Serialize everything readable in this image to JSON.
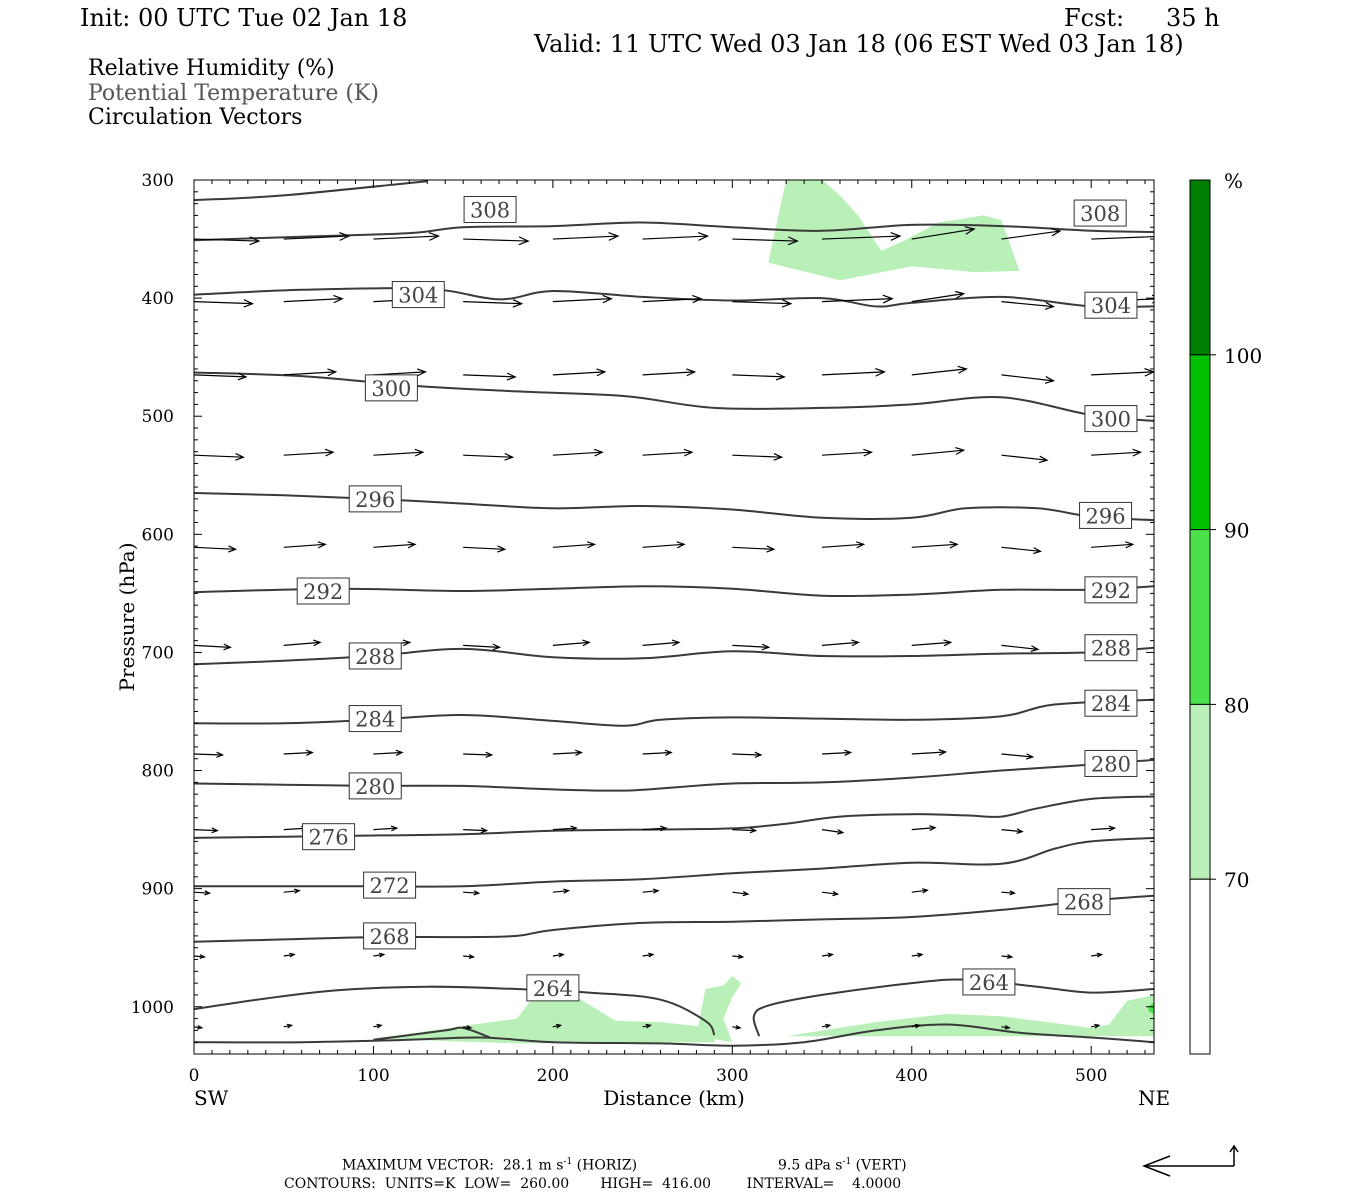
{
  "header": {
    "init": "Init: 00 UTC Tue 02 Jan 18",
    "fcst_label": "Fcst:",
    "fcst_value": "35 h",
    "valid": "Valid: 11 UTC Wed 03 Jan 18 (06 EST Wed 03 Jan 18)"
  },
  "fields": {
    "rh": "Relative Humidity (%)",
    "theta": "Potential Temperature (K)",
    "vectors": "Circulation Vectors"
  },
  "footer": {
    "max_vector": "MAXIMUM VECTOR:  28.1 m s",
    "max_vector_exp": "-1",
    "horiz": " (HORIZ)",
    "vert_val": "9.5 dPa s",
    "vert_exp": "-1",
    "vert": " (VERT)",
    "contours": "CONTOURS:  UNITS=K  LOW=  260.00       HIGH=  416.00        INTERVAL=    4.0000"
  },
  "colors": {
    "contour": "#3a3a3a",
    "rh70": "#b8f0b8",
    "rh80": "#4be14b",
    "rh90": "#00c000",
    "rh100": "#008000"
  },
  "chart_data": {
    "type": "cross-section",
    "xlabel": "Distance (km)",
    "ylabel": "Pressure (hPa)",
    "xlim": [
      0,
      535
    ],
    "ylim": [
      1040,
      300
    ],
    "x_ticks": [
      "0",
      "100",
      "200",
      "300",
      "400",
      "500"
    ],
    "x_tick_values": [
      0,
      100,
      200,
      300,
      400,
      500
    ],
    "y_ticks": [
      "300",
      "400",
      "500",
      "600",
      "700",
      "800",
      "900",
      "1000"
    ],
    "y_tick_values": [
      300,
      400,
      500,
      600,
      700,
      800,
      900,
      1000
    ],
    "left_end": "SW",
    "right_end": "NE",
    "colorbar": {
      "unit": "%",
      "levels": [
        "70",
        "80",
        "90",
        "100"
      ],
      "level_values": [
        70,
        80,
        90,
        100
      ],
      "colors": [
        "#ffffff",
        "#b8f0b8",
        "#4be14b",
        "#00c000",
        "#008000"
      ]
    },
    "isentropes": [
      {
        "theta": 308,
        "labels": [
          "308",
          "308"
        ],
        "points": [
          [
            0,
            317
          ],
          [
            50,
            313
          ],
          [
            130,
            301
          ]
        ]
      },
      {
        "theta": 308,
        "labels": [],
        "points": [
          [
            0,
            351
          ],
          [
            60,
            348
          ],
          [
            120,
            345
          ],
          [
            150,
            340
          ],
          [
            200,
            339
          ],
          [
            250,
            336
          ],
          [
            300,
            340
          ],
          [
            350,
            343
          ],
          [
            400,
            338
          ],
          [
            450,
            339
          ],
          [
            500,
            343
          ],
          [
            535,
            344
          ]
        ]
      },
      {
        "theta": 304,
        "labels": [
          "304",
          "304"
        ],
        "points": [
          [
            0,
            397
          ],
          [
            60,
            393
          ],
          [
            130,
            392
          ],
          [
            170,
            401
          ],
          [
            200,
            394
          ],
          [
            250,
            399
          ],
          [
            300,
            402
          ],
          [
            350,
            400
          ],
          [
            380,
            407
          ],
          [
            400,
            404
          ],
          [
            450,
            399
          ],
          [
            500,
            407
          ],
          [
            535,
            407
          ]
        ]
      },
      {
        "theta": 300,
        "labels": [
          "300",
          "300"
        ],
        "points": [
          [
            0,
            463
          ],
          [
            60,
            466
          ],
          [
            120,
            474
          ],
          [
            180,
            479
          ],
          [
            240,
            483
          ],
          [
            290,
            493
          ],
          [
            350,
            493
          ],
          [
            400,
            490
          ],
          [
            450,
            484
          ],
          [
            500,
            499
          ],
          [
            535,
            504
          ]
        ]
      },
      {
        "theta": 296,
        "labels": [
          "296",
          "296"
        ],
        "points": [
          [
            0,
            565
          ],
          [
            50,
            567
          ],
          [
            100,
            570
          ],
          [
            150,
            574
          ],
          [
            200,
            578
          ],
          [
            250,
            576
          ],
          [
            300,
            579
          ],
          [
            350,
            586
          ],
          [
            400,
            586
          ],
          [
            430,
            578
          ],
          [
            470,
            578
          ],
          [
            500,
            585
          ],
          [
            535,
            588
          ]
        ]
      },
      {
        "theta": 292,
        "labels": [
          "292",
          "292"
        ],
        "points": [
          [
            0,
            649
          ],
          [
            80,
            646
          ],
          [
            150,
            648
          ],
          [
            200,
            646
          ],
          [
            250,
            644
          ],
          [
            300,
            646
          ],
          [
            350,
            652
          ],
          [
            400,
            651
          ],
          [
            450,
            647
          ],
          [
            500,
            647
          ],
          [
            535,
            644
          ]
        ]
      },
      {
        "theta": 288,
        "labels": [
          "288",
          "288"
        ],
        "points": [
          [
            0,
            710
          ],
          [
            50,
            707
          ],
          [
            100,
            703
          ],
          [
            150,
            697
          ],
          [
            200,
            704
          ],
          [
            250,
            705
          ],
          [
            300,
            699
          ],
          [
            350,
            703
          ],
          [
            400,
            703
          ],
          [
            450,
            701
          ],
          [
            500,
            700
          ],
          [
            535,
            696
          ]
        ]
      },
      {
        "theta": 284,
        "labels": [
          "284",
          "284"
        ],
        "points": [
          [
            0,
            760
          ],
          [
            50,
            760
          ],
          [
            100,
            757
          ],
          [
            150,
            753
          ],
          [
            200,
            758
          ],
          [
            240,
            762
          ],
          [
            260,
            757
          ],
          [
            300,
            755
          ],
          [
            350,
            756
          ],
          [
            400,
            757
          ],
          [
            450,
            754
          ],
          [
            480,
            744
          ],
          [
            535,
            740
          ]
        ]
      },
      {
        "theta": 280,
        "labels": [
          "280",
          "280"
        ],
        "points": [
          [
            0,
            811
          ],
          [
            50,
            812
          ],
          [
            100,
            813
          ],
          [
            150,
            813
          ],
          [
            200,
            816
          ],
          [
            240,
            817
          ],
          [
            270,
            814
          ],
          [
            300,
            811
          ],
          [
            350,
            810
          ],
          [
            400,
            806
          ],
          [
            450,
            800
          ],
          [
            500,
            795
          ],
          [
            535,
            791
          ]
        ]
      },
      {
        "theta": 276,
        "labels": [
          "276"
        ],
        "points": [
          [
            0,
            857
          ],
          [
            50,
            856
          ],
          [
            100,
            855
          ],
          [
            150,
            854
          ],
          [
            200,
            851
          ],
          [
            250,
            850
          ],
          [
            300,
            849
          ],
          [
            330,
            845
          ],
          [
            360,
            839
          ],
          [
            400,
            837
          ],
          [
            430,
            838
          ],
          [
            450,
            839
          ],
          [
            470,
            832
          ],
          [
            500,
            824
          ],
          [
            535,
            822
          ]
        ]
      },
      {
        "theta": 272,
        "labels": [
          "272"
        ],
        "points": [
          [
            0,
            898
          ],
          [
            50,
            898
          ],
          [
            100,
            898
          ],
          [
            150,
            898
          ],
          [
            200,
            894
          ],
          [
            250,
            892
          ],
          [
            300,
            887
          ],
          [
            350,
            883
          ],
          [
            400,
            878
          ],
          [
            450,
            879
          ],
          [
            480,
            866
          ],
          [
            500,
            860
          ],
          [
            535,
            857
          ]
        ]
      },
      {
        "theta": 268,
        "labels": [
          "268",
          "268"
        ],
        "points": [
          [
            0,
            945
          ],
          [
            50,
            943
          ],
          [
            100,
            941
          ],
          [
            150,
            941
          ],
          [
            180,
            940
          ],
          [
            200,
            935
          ],
          [
            250,
            929
          ],
          [
            300,
            928
          ],
          [
            350,
            926
          ],
          [
            400,
            924
          ],
          [
            450,
            918
          ],
          [
            500,
            910
          ],
          [
            535,
            906
          ]
        ]
      },
      {
        "theta": 264,
        "labels": [
          "264",
          "264"
        ],
        "points": [
          [
            0,
            1002
          ],
          [
            40,
            993
          ],
          [
            80,
            986
          ],
          [
            130,
            983
          ],
          [
            180,
            985
          ],
          [
            220,
            988
          ],
          [
            260,
            994
          ],
          [
            285,
            1012
          ],
          [
            290,
            1024
          ]
        ]
      },
      {
        "theta": 264,
        "labels": [],
        "points": [
          [
            315,
            1025
          ],
          [
            312,
            1008
          ],
          [
            320,
            999
          ],
          [
            350,
            990
          ],
          [
            400,
            980
          ],
          [
            430,
            977
          ],
          [
            470,
            983
          ],
          [
            500,
            988
          ],
          [
            535,
            985
          ]
        ]
      },
      {
        "theta": 260,
        "labels": [],
        "points": [
          [
            0,
            1030
          ],
          [
            60,
            1030
          ],
          [
            120,
            1028
          ],
          [
            160,
            1026
          ],
          [
            200,
            1030
          ],
          [
            260,
            1031
          ],
          [
            300,
            1033
          ],
          [
            340,
            1030
          ],
          [
            380,
            1020
          ],
          [
            420,
            1015
          ],
          [
            460,
            1022
          ],
          [
            500,
            1026
          ],
          [
            535,
            1030
          ]
        ]
      },
      {
        "theta": 260,
        "labels": [],
        "points": [
          [
            100,
            1028
          ],
          [
            140,
            1020
          ],
          [
            150,
            1018
          ],
          [
            165,
            1026
          ]
        ]
      }
    ],
    "rh_regions": [
      {
        "level": 70,
        "points": [
          [
            330,
            300
          ],
          [
            350,
            300
          ],
          [
            360,
            313
          ],
          [
            370,
            330
          ],
          [
            383,
            360
          ],
          [
            395,
            352
          ],
          [
            415,
            336
          ],
          [
            440,
            330
          ],
          [
            450,
            334
          ],
          [
            460,
            377
          ],
          [
            435,
            378
          ],
          [
            400,
            373
          ],
          [
            360,
            385
          ],
          [
            320,
            370
          ]
        ]
      },
      {
        "level": 70,
        "points": [
          [
            100,
            1027
          ],
          [
            180,
            1010
          ],
          [
            190,
            990
          ],
          [
            200,
            980
          ],
          [
            220,
            998
          ],
          [
            235,
            1012
          ],
          [
            260,
            1013
          ],
          [
            290,
            1018
          ],
          [
            290,
            1030
          ],
          [
            180,
            1031
          ]
        ]
      },
      {
        "level": 70,
        "points": [
          [
            280,
            1025
          ],
          [
            285,
            985
          ],
          [
            295,
            982
          ],
          [
            300,
            974
          ],
          [
            305,
            980
          ],
          [
            300,
            992
          ],
          [
            295,
            1010
          ],
          [
            300,
            1030
          ]
        ]
      },
      {
        "level": 70,
        "points": [
          [
            330,
            1025
          ],
          [
            380,
            1013
          ],
          [
            420,
            1006
          ],
          [
            450,
            1008
          ],
          [
            470,
            1012
          ],
          [
            500,
            1018
          ],
          [
            510,
            1015
          ],
          [
            520,
            995
          ],
          [
            535,
            990
          ],
          [
            535,
            1025
          ]
        ]
      },
      {
        "level": 80,
        "points": [
          [
            532,
            1000
          ],
          [
            535,
            996
          ],
          [
            535,
            1006
          ],
          [
            532,
            1004
          ]
        ]
      }
    ],
    "vectors_note": "circulation vectors drawn on grid"
  }
}
